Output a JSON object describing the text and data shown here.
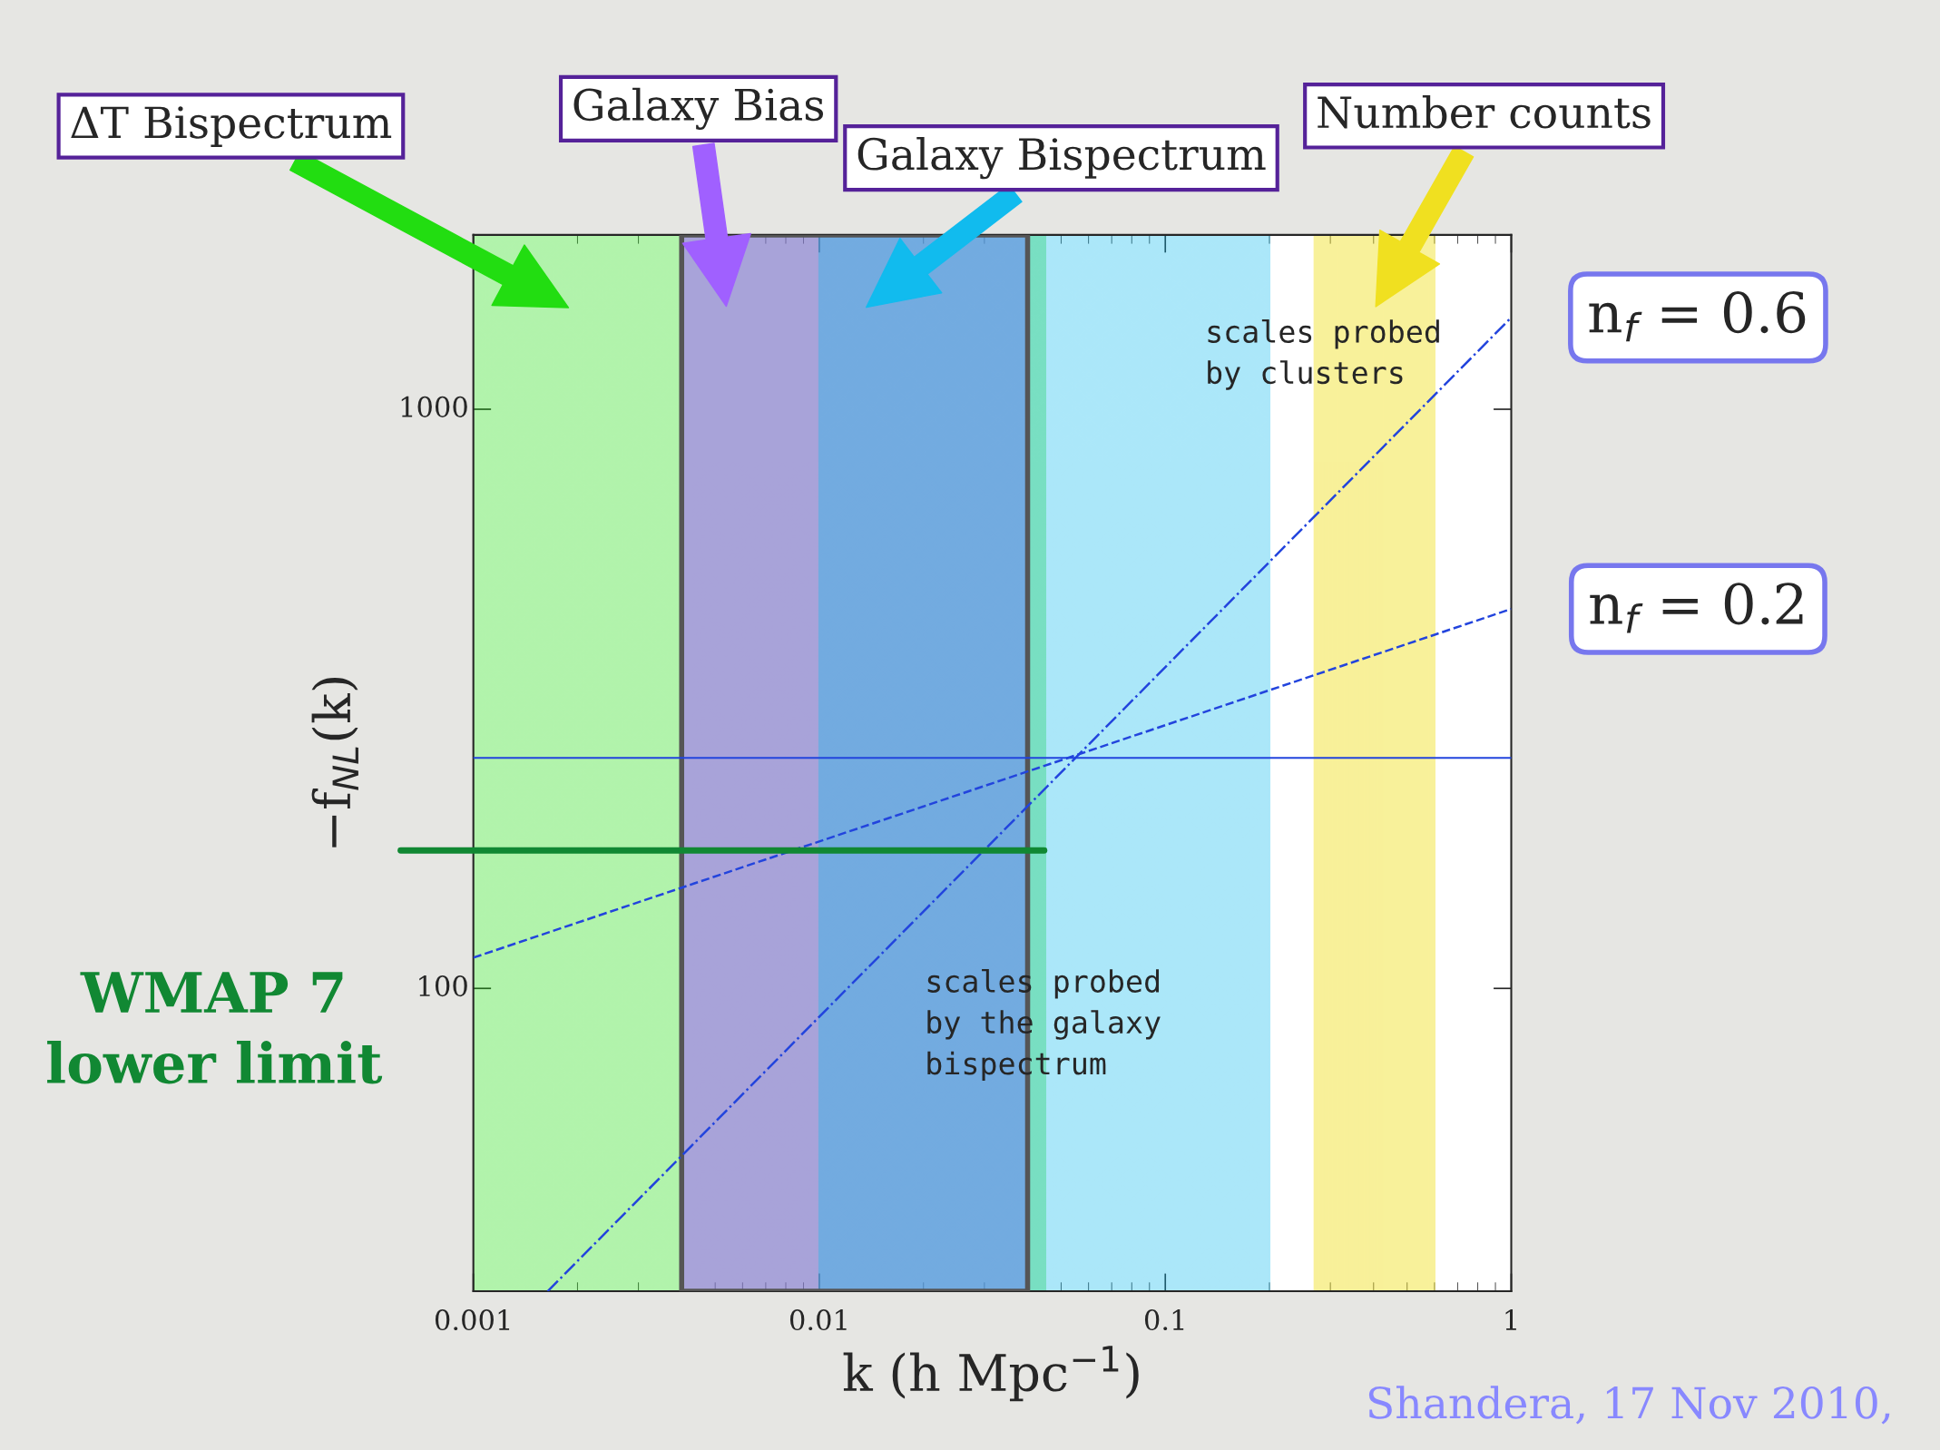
{
  "chart_data": {
    "type": "line",
    "xlabel": "k (h Mpc$^{−1}$)",
    "ylabel": "−f$_{NL}$(k)",
    "log": "xy",
    "xlim": [
      0.001,
      1
    ],
    "ylim": [
      30,
      2000
    ],
    "xticks": [
      0.001,
      0.01,
      0.1,
      1
    ],
    "yticks": [
      100,
      1000
    ],
    "series": [
      {
        "name": "n$_{f}$ = 0.6",
        "color": "#2244dd",
        "line_style": "dashdot",
        "x": [
          0.00164,
          1
        ],
        "values": [
          30,
          1440
        ]
      },
      {
        "name": "n$_{f}$ = 0.2",
        "color": "#2244dd",
        "line_style": "dashed",
        "x": [
          0.001,
          1
        ],
        "values": [
          113,
          452
        ]
      }
    ],
    "bands": [
      {
        "axis": "x",
        "from": 0.001,
        "to": 0.045,
        "label": "ΔT Bispectrum",
        "color": "#22dd11"
      },
      {
        "axis": "x",
        "from": 0.004,
        "to": 0.04,
        "label": "Galaxy Bias",
        "color": "#a060ff"
      },
      {
        "axis": "x",
        "from": 0.01,
        "to": 0.2,
        "label": "Galaxy Bispectrum",
        "color": "#11bbee"
      },
      {
        "axis": "x",
        "from": 0.27,
        "to": 0.6,
        "label": "Number counts",
        "color": "#f0e020"
      }
    ],
    "ref_lines": [
      {
        "axis": "y",
        "value": 250,
        "color": "#2244dd"
      },
      {
        "axis": "y",
        "value": 173,
        "label": "WMAP 7\nlower limit",
        "color": "#118833"
      }
    ],
    "annotations": [
      "scales probed\nby clusters",
      "scales probed\nby the galaxy\nbispectrum",
      "Shandera, 17 Nov 2010,"
    ],
    "grid": false
  }
}
